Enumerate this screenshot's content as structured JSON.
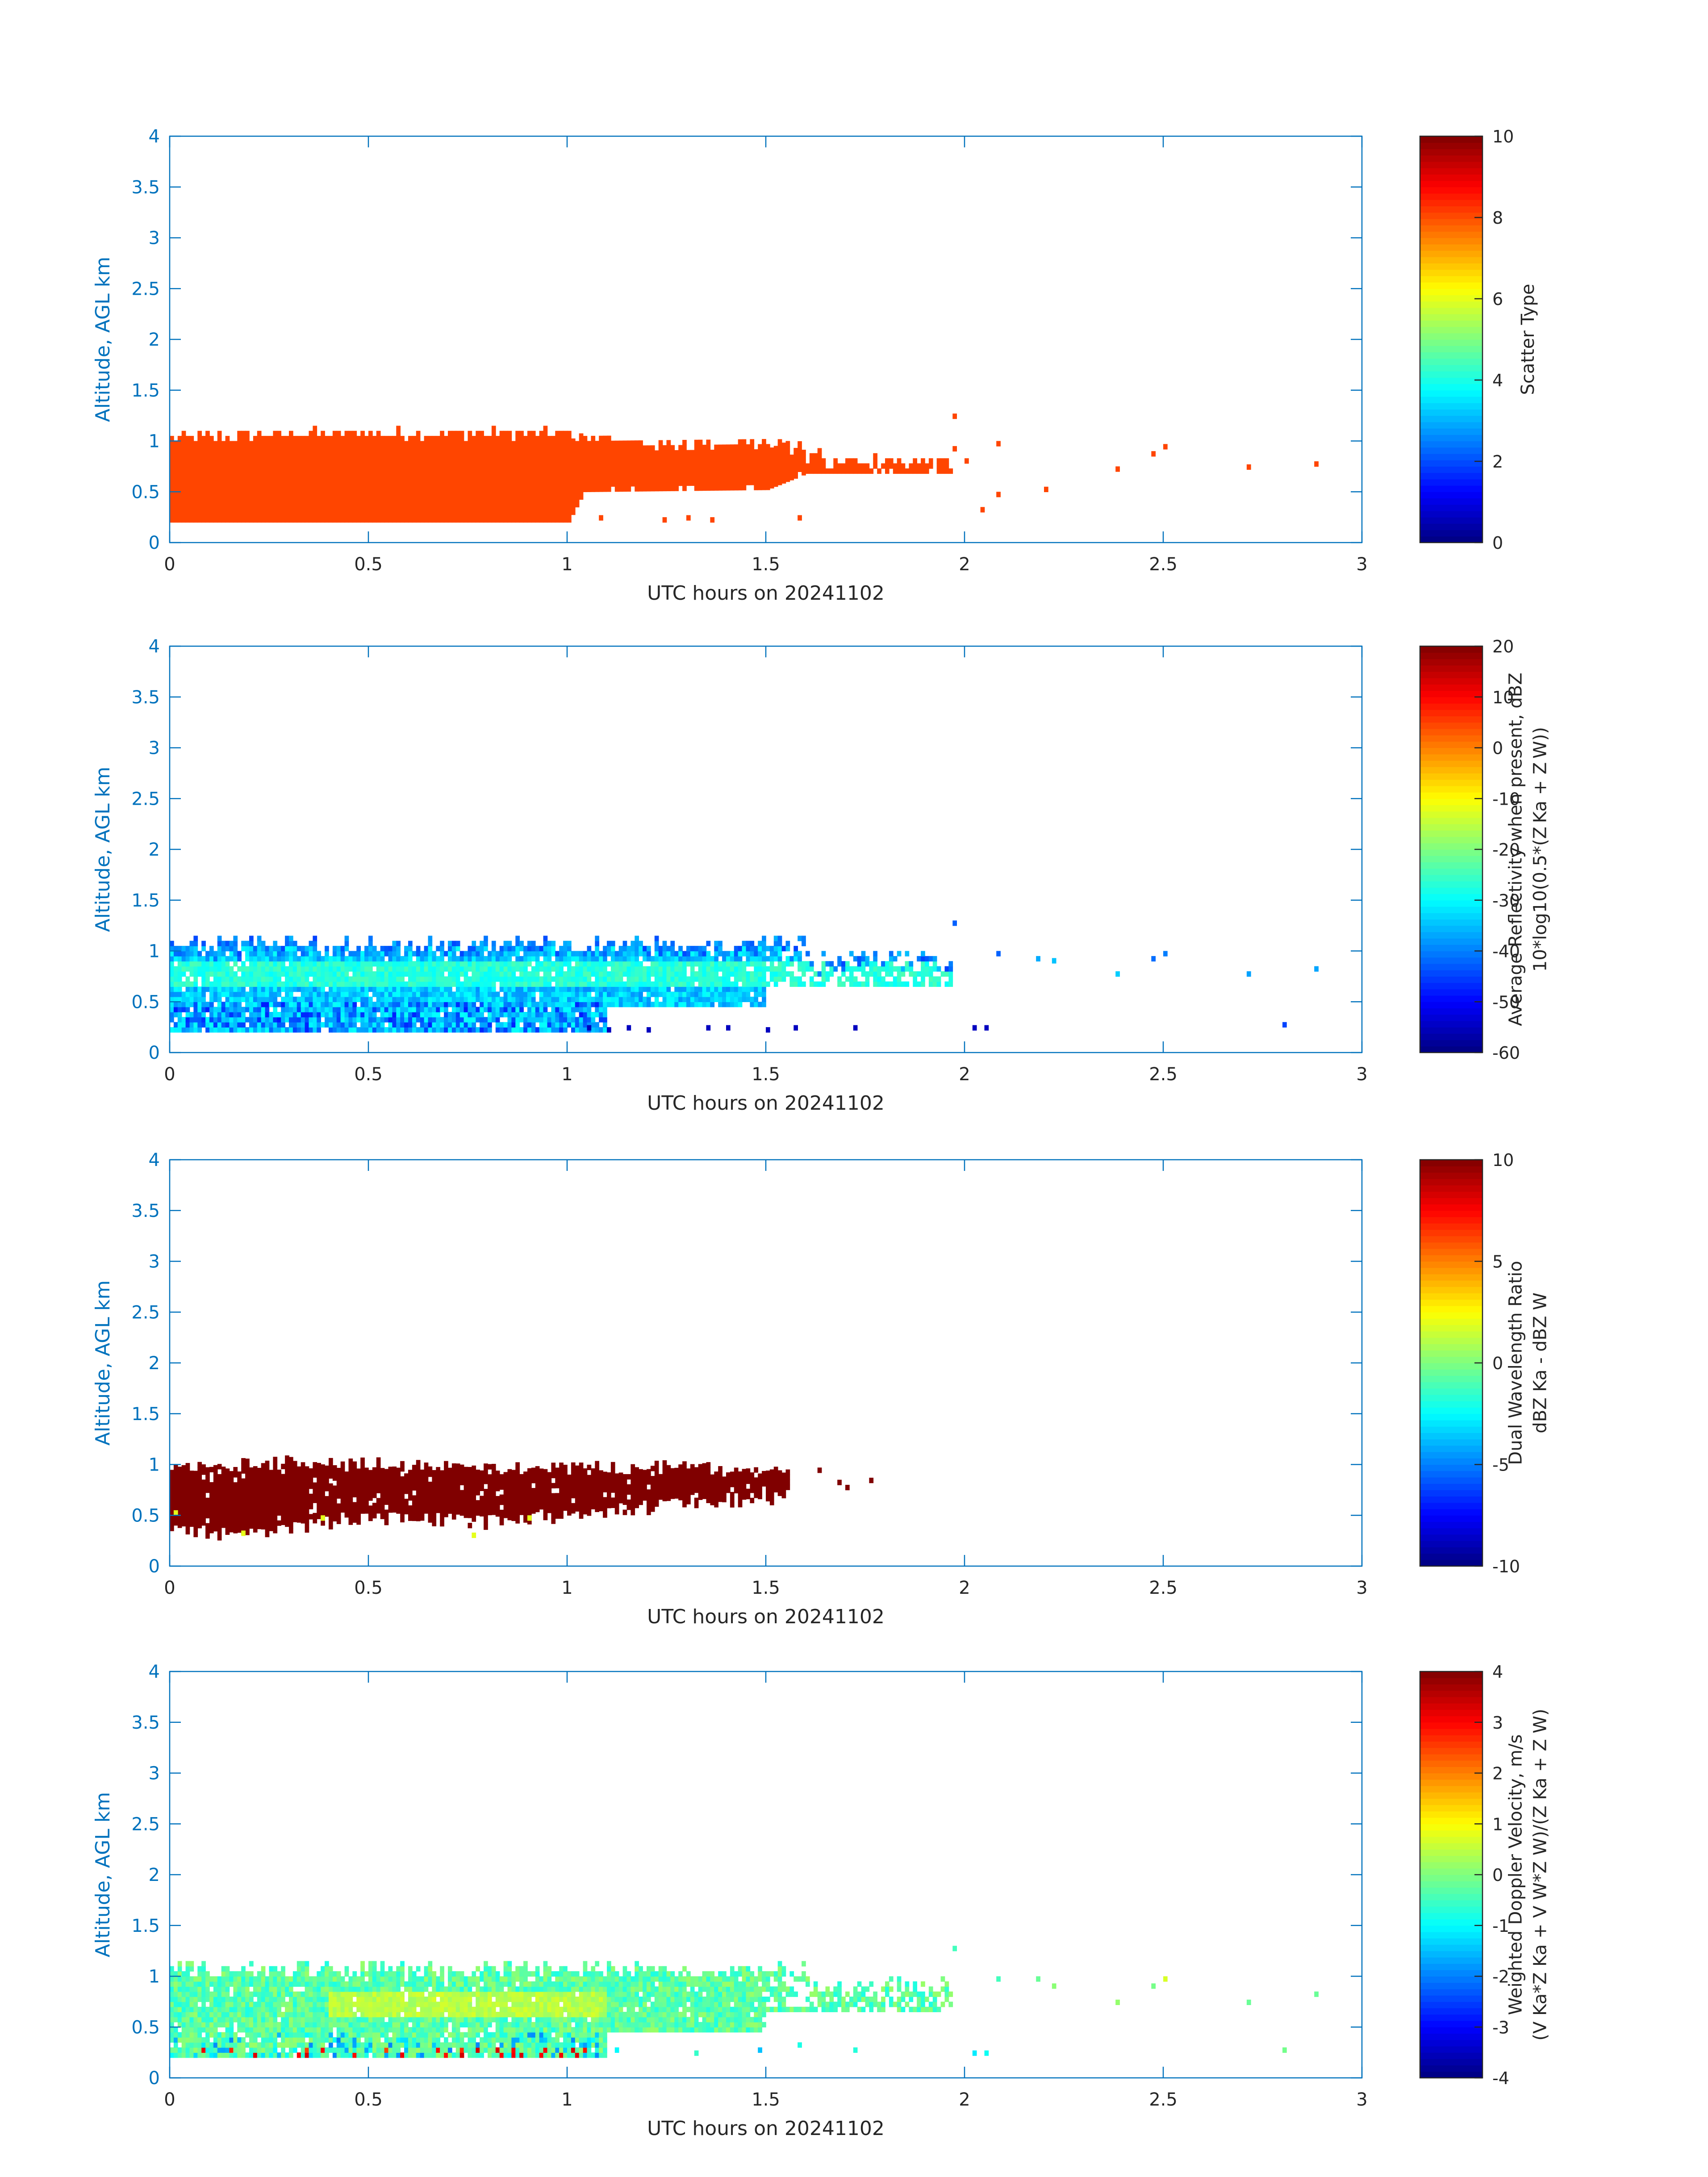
{
  "colors": {
    "axis": "#0072BD",
    "text": "#262626",
    "panel1_fill": "#FF4500"
  },
  "colormap": "jet",
  "chart_data": [
    {
      "type": "heatmap",
      "xlabel": "UTC hours on 20241102",
      "ylabel": "Altitude, AGL km",
      "xlim": [
        0,
        3
      ],
      "ylim": [
        0,
        4
      ],
      "xticks": [
        "0",
        "0.5",
        "1",
        "1.5",
        "2",
        "2.5",
        "3"
      ],
      "yticks": [
        "0",
        "0.5",
        "1",
        "1.5",
        "2",
        "2.5",
        "3",
        "3.5",
        "4"
      ],
      "colorbar": {
        "label_lines": [
          "Scatter Type"
        ],
        "clim": [
          0,
          10
        ],
        "ticks": [
          "0",
          "2",
          "4",
          "6",
          "8",
          "10"
        ]
      },
      "field": "scatter_type",
      "value": 9,
      "extent": {
        "x_end": 2.9,
        "x_continuous_end": 1.97
      },
      "top_profile": [
        [
          0,
          1.0
        ],
        [
          0.3,
          1.05
        ],
        [
          0.8,
          1.05
        ],
        [
          1.0,
          1.05
        ],
        [
          1.2,
          0.95
        ],
        [
          1.5,
          0.95
        ],
        [
          1.7,
          0.82
        ],
        [
          1.8,
          0.8
        ],
        [
          1.95,
          0.82
        ]
      ],
      "bottom_profile": [
        [
          0,
          0.2
        ],
        [
          1.0,
          0.2
        ],
        [
          1.04,
          0.5
        ],
        [
          1.5,
          0.52
        ],
        [
          1.6,
          0.68
        ],
        [
          1.7,
          0.68
        ],
        [
          1.95,
          0.68
        ]
      ],
      "scatter_points": [
        [
          1.97,
          1.22
        ],
        [
          1.97,
          0.9
        ],
        [
          2.0,
          0.78
        ],
        [
          2.08,
          0.95
        ],
        [
          2.04,
          0.3
        ],
        [
          2.08,
          0.45
        ],
        [
          2.2,
          0.5
        ],
        [
          2.38,
          0.7
        ],
        [
          2.47,
          0.85
        ],
        [
          2.5,
          0.92
        ],
        [
          2.71,
          0.72
        ],
        [
          2.88,
          0.75
        ]
      ]
    },
    {
      "type": "heatmap",
      "xlabel": "UTC hours on 20241102",
      "ylabel": "Altitude, AGL km",
      "xlim": [
        0,
        3
      ],
      "ylim": [
        0,
        4
      ],
      "xticks": [
        "0",
        "0.5",
        "1",
        "1.5",
        "2",
        "2.5",
        "3"
      ],
      "yticks": [
        "0",
        "0.5",
        "1",
        "1.5",
        "2",
        "2.5",
        "3",
        "3.5",
        "4"
      ],
      "colorbar": {
        "label_lines": [
          "Average Reflectivity when present, dBZ",
          "10*log10(0.5*(Z Ka + Z W))"
        ],
        "clim": [
          -60,
          20
        ],
        "ticks": [
          "-60",
          "-50",
          "-40",
          "-30",
          "-20",
          "-10",
          "0",
          "10",
          "20"
        ]
      },
      "field": "reflectivity_dbz",
      "band_center": {
        "altitude_km": 0.75,
        "value": -27
      },
      "typical_value": -34,
      "scatter_points": [
        [
          1.97,
          1.25
        ],
        [
          2.08,
          0.95
        ],
        [
          2.18,
          0.9
        ],
        [
          2.22,
          0.88
        ],
        [
          2.38,
          0.75
        ],
        [
          2.47,
          0.9
        ],
        [
          2.5,
          0.95
        ],
        [
          2.71,
          0.75
        ],
        [
          2.8,
          0.25
        ],
        [
          2.88,
          0.8
        ]
      ]
    },
    {
      "type": "heatmap",
      "xlabel": "UTC hours on 20241102",
      "ylabel": "Altitude, AGL km",
      "xlim": [
        0,
        3
      ],
      "ylim": [
        0,
        4
      ],
      "xticks": [
        "0",
        "0.5",
        "1",
        "1.5",
        "2",
        "2.5",
        "3"
      ],
      "yticks": [
        "0",
        "0.5",
        "1",
        "1.5",
        "2",
        "2.5",
        "3",
        "3.5",
        "4"
      ],
      "colorbar": {
        "label_lines": [
          "Dual Wavelength Ratio",
          "dBZ Ka - dBZ W"
        ],
        "clim": [
          -10,
          10
        ],
        "ticks": [
          "-10",
          "-5",
          "0",
          "5",
          "10"
        ]
      },
      "field": "dual_wavelength_ratio",
      "value": 10,
      "top_profile": [
        [
          0,
          0.95
        ],
        [
          0.3,
          1.0
        ],
        [
          0.8,
          0.95
        ],
        [
          1.1,
          0.95
        ],
        [
          1.3,
          0.95
        ],
        [
          1.55,
          0.9
        ]
      ],
      "bottom_profile": [
        [
          0,
          0.3
        ],
        [
          0.2,
          0.3
        ],
        [
          0.5,
          0.45
        ],
        [
          0.8,
          0.4
        ],
        [
          1.1,
          0.5
        ],
        [
          1.3,
          0.6
        ],
        [
          1.55,
          0.65
        ]
      ],
      "scatter_points": [
        [
          1.63,
          0.92
        ],
        [
          1.68,
          0.8
        ],
        [
          1.7,
          0.75
        ],
        [
          1.76,
          0.82
        ]
      ]
    },
    {
      "type": "heatmap",
      "xlabel": "UTC hours on 20241102",
      "ylabel": "Altitude, AGL km",
      "xlim": [
        0,
        3
      ],
      "ylim": [
        0,
        4
      ],
      "xticks": [
        "0",
        "0.5",
        "1",
        "1.5",
        "2",
        "2.5",
        "3"
      ],
      "yticks": [
        "0",
        "0.5",
        "1",
        "1.5",
        "2",
        "2.5",
        "3",
        "3.5",
        "4"
      ],
      "colorbar": {
        "label_lines": [
          "Weighted Doppler Velocity, m/s",
          "(V Ka*Z Ka + V W*Z W)/(Z Ka + Z W)"
        ],
        "clim": [
          -4,
          4
        ],
        "ticks": [
          "-4",
          "-3",
          "-2",
          "-1",
          "0",
          "1",
          "2",
          "3",
          "4"
        ]
      },
      "field": "doppler_velocity_ms",
      "typical_value": -0.3,
      "scatter_points": [
        [
          1.97,
          1.25
        ],
        [
          2.08,
          0.95
        ],
        [
          2.18,
          0.95
        ],
        [
          2.22,
          0.88
        ],
        [
          2.38,
          0.72
        ],
        [
          2.47,
          0.88
        ],
        [
          2.5,
          0.95
        ],
        [
          2.71,
          0.72
        ],
        [
          2.8,
          0.25
        ],
        [
          2.88,
          0.8
        ]
      ]
    }
  ]
}
